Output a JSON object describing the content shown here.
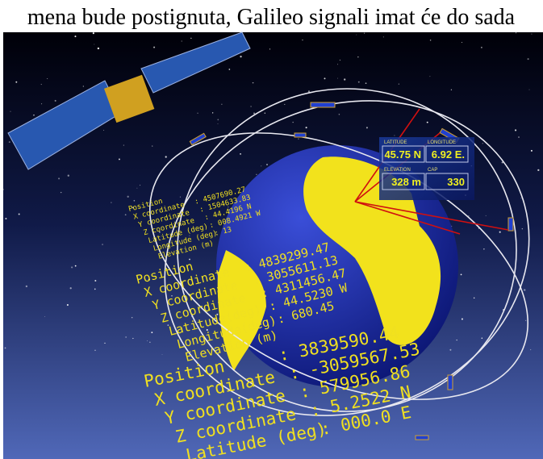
{
  "caption": "mena bude postignuta, Galileo signali imat će do sada",
  "panel": {
    "fields": [
      {
        "label": "LATITUDE",
        "value": "45.75 N"
      },
      {
        "label": "LONGITUDE",
        "value": "6.92 E."
      },
      {
        "label": "ELEVATION",
        "value": "328 m"
      },
      {
        "label": "CAP",
        "value": "330"
      }
    ]
  },
  "readouts": [
    {
      "lines": [
        {
          "label": "Position",
          "value": ""
        },
        {
          "label": "X coordinate",
          "value": ": 4507690.27"
        },
        {
          "label": "Y coordinate",
          "value": ": 1504633.83"
        },
        {
          "label": "Z coordinate",
          "value": ": 44.4196 N"
        },
        {
          "label": "Latitude (deg)",
          "value": ": 008.4921 W"
        },
        {
          "label": "Longitude (deg)",
          "value": ": 13"
        },
        {
          "label": "Elevation (m)",
          "value": ""
        }
      ]
    },
    {
      "lines": [
        {
          "label": "Position",
          "value": ""
        },
        {
          "label": "X coordinate",
          "value": ": 4839299.47"
        },
        {
          "label": "Y coordinate",
          "value": ": 3055611.13"
        },
        {
          "label": "Z coordinate",
          "value": ": 4311456.47"
        },
        {
          "label": "Latitude(deg)",
          "value": ": 44.5230 W"
        },
        {
          "label": "Longitude(deg)",
          "value": ": 680.45"
        },
        {
          "label": "Elevation (m)",
          "value": ""
        }
      ]
    },
    {
      "lines": [
        {
          "label": "Position",
          "value": ": 3839590.44"
        },
        {
          "label": "X coordinate",
          "value": ": -3059567.53"
        },
        {
          "label": "Y coordinate",
          "value": ": 579956.86"
        },
        {
          "label": "Z coordinate",
          "value": ": 5.2522 N"
        },
        {
          "label": "Latitude (deg)",
          "value": ": 000.0 E"
        }
      ]
    }
  ]
}
